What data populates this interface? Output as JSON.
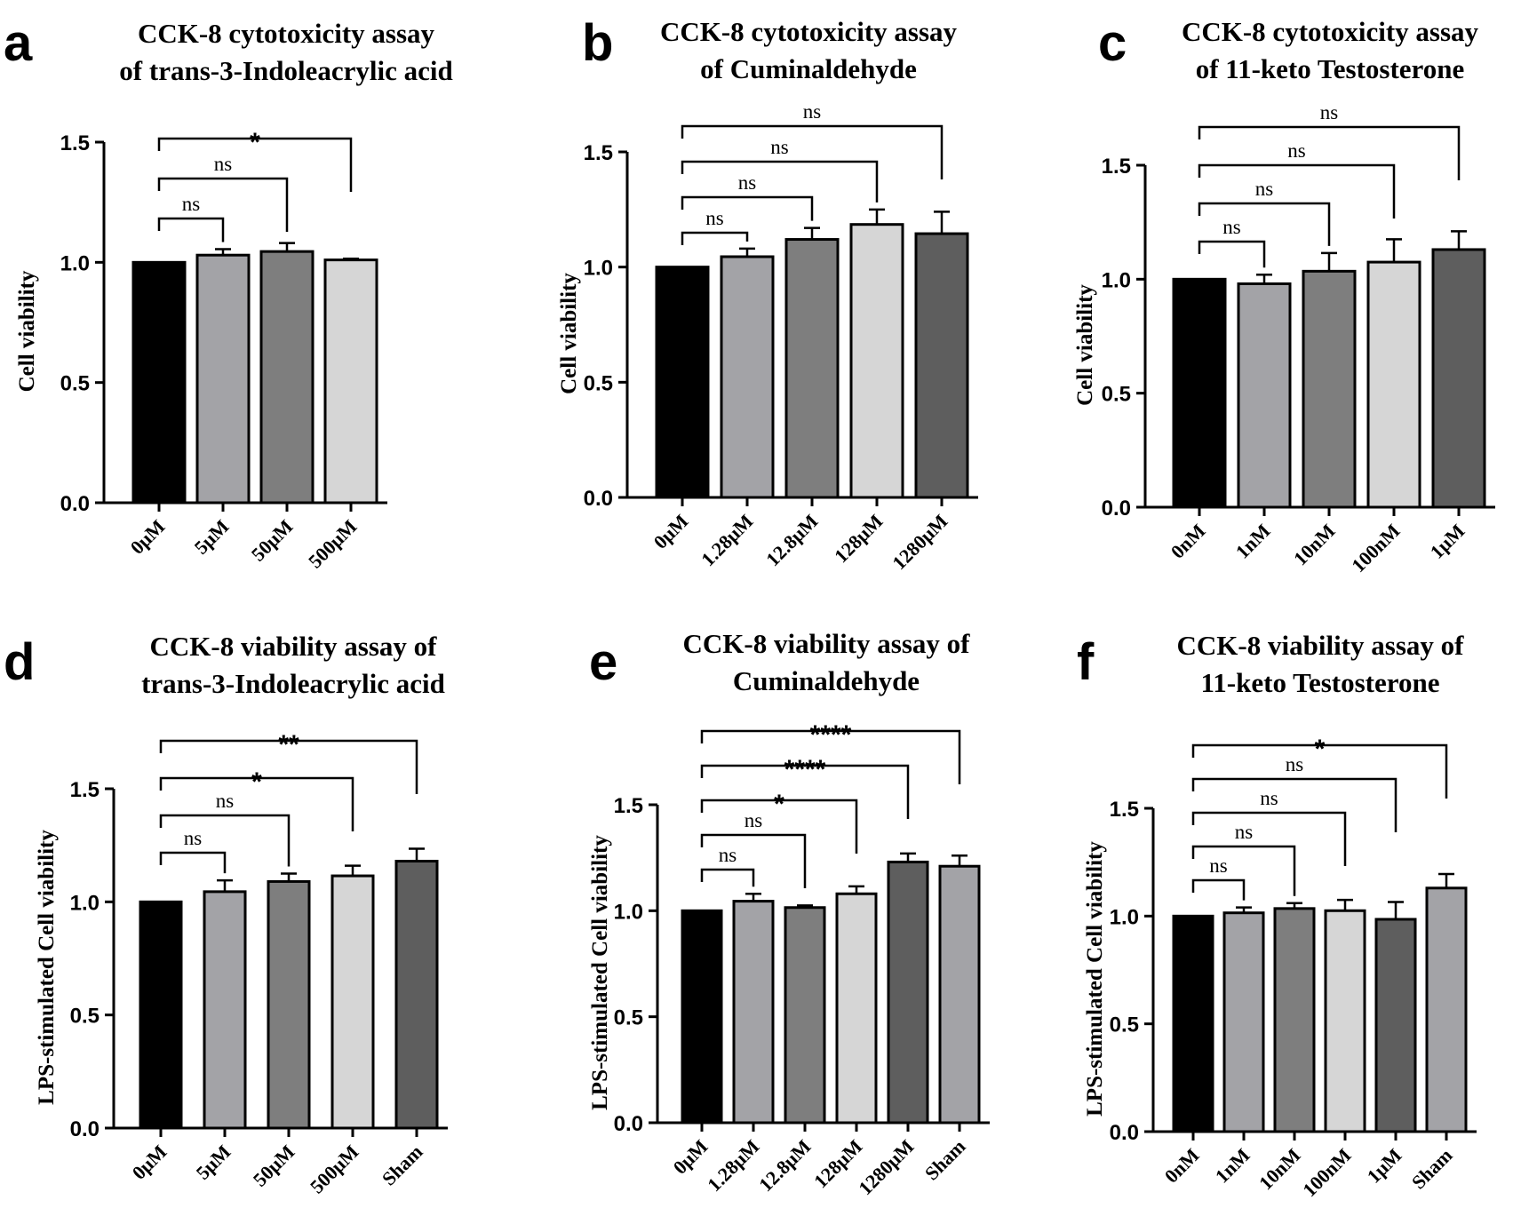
{
  "chart_data": [
    {
      "letter": "a",
      "type": "bar",
      "title": [
        "CCK-8 cytotoxicity assay",
        "of trans-3-Indoleacrylic acid"
      ],
      "ylabel": "Cell viability",
      "xlabel": "",
      "ylim": [
        0,
        1.5
      ],
      "yticks": [
        "0.0",
        "0.5",
        "1.0",
        "1.5"
      ],
      "categories": [
        "0μM",
        "5μM",
        "50μM",
        "500μM"
      ],
      "values": [
        1.0,
        1.03,
        1.045,
        1.01
      ],
      "errors": [
        0,
        0.025,
        0.035,
        0.005
      ],
      "colors": [
        "#000000",
        "#a3a3a7",
        "#7e7e7e",
        "#d6d6d6"
      ],
      "comparisons": [
        {
          "from": 0,
          "to": 1,
          "label": "ns"
        },
        {
          "from": 0,
          "to": 2,
          "label": "ns"
        },
        {
          "from": 0,
          "to": 3,
          "label": "*"
        }
      ]
    },
    {
      "letter": "b",
      "type": "bar",
      "title": [
        "CCK-8 cytotoxicity assay",
        "of Cuminaldehyde"
      ],
      "ylabel": "Cell viability",
      "xlabel": "",
      "ylim": [
        0,
        1.5
      ],
      "yticks": [
        "0.0",
        "0.5",
        "1.0",
        "1.5"
      ],
      "categories": [
        "0μM",
        "1.28μM",
        "12.8μM",
        "128μM",
        "1280μM"
      ],
      "values": [
        1.0,
        1.045,
        1.12,
        1.185,
        1.145
      ],
      "errors": [
        0,
        0.035,
        0.05,
        0.065,
        0.095
      ],
      "colors": [
        "#000000",
        "#a3a3a7",
        "#7e7e7e",
        "#d6d6d6",
        "#5e5e5e"
      ],
      "comparisons": [
        {
          "from": 0,
          "to": 1,
          "label": "ns"
        },
        {
          "from": 0,
          "to": 2,
          "label": "ns"
        },
        {
          "from": 0,
          "to": 3,
          "label": "ns"
        },
        {
          "from": 0,
          "to": 4,
          "label": "ns"
        }
      ]
    },
    {
      "letter": "c",
      "type": "bar",
      "title": [
        "CCK-8 cytotoxicity assay",
        "of 11-keto Testosterone"
      ],
      "ylabel": "Cell viability",
      "xlabel": "",
      "ylim": [
        0,
        1.5
      ],
      "yticks": [
        "0.0",
        "0.5",
        "1.0",
        "1.5"
      ],
      "categories": [
        "0nM",
        "1nM",
        "10nM",
        "100nM",
        "1μM"
      ],
      "values": [
        1.0,
        0.98,
        1.035,
        1.075,
        1.13
      ],
      "errors": [
        0,
        0.04,
        0.08,
        0.1,
        0.08
      ],
      "colors": [
        "#000000",
        "#a3a3a7",
        "#7e7e7e",
        "#d6d6d6",
        "#5e5e5e"
      ],
      "comparisons": [
        {
          "from": 0,
          "to": 1,
          "label": "ns"
        },
        {
          "from": 0,
          "to": 2,
          "label": "ns"
        },
        {
          "from": 0,
          "to": 3,
          "label": "ns"
        },
        {
          "from": 0,
          "to": 4,
          "label": "ns"
        }
      ]
    },
    {
      "letter": "d",
      "type": "bar",
      "title": [
        "CCK-8 viability assay of",
        "trans-3-Indoleacrylic acid"
      ],
      "ylabel": "LPS-stimulated Cell viability",
      "xlabel": "",
      "ylim": [
        0,
        1.5
      ],
      "yticks": [
        "0.0",
        "0.5",
        "1.0",
        "1.5"
      ],
      "categories": [
        "0μM",
        "5μM",
        "50μM",
        "500μM",
        "Sham"
      ],
      "values": [
        1.0,
        1.045,
        1.09,
        1.115,
        1.18
      ],
      "errors": [
        0,
        0.05,
        0.035,
        0.045,
        0.055
      ],
      "colors": [
        "#000000",
        "#a3a3a7",
        "#7e7e7e",
        "#d6d6d6",
        "#5e5e5e"
      ],
      "comparisons": [
        {
          "from": 0,
          "to": 1,
          "label": "ns"
        },
        {
          "from": 0,
          "to": 2,
          "label": "ns"
        },
        {
          "from": 0,
          "to": 3,
          "label": "*"
        },
        {
          "from": 0,
          "to": 4,
          "label": "**"
        }
      ]
    },
    {
      "letter": "e",
      "type": "bar",
      "title": [
        "CCK-8 viability assay of",
        "Cuminaldehyde"
      ],
      "ylabel": "LPS-stimulated Cell viability",
      "xlabel": "",
      "ylim": [
        0,
        1.5
      ],
      "yticks": [
        "0.0",
        "0.5",
        "1.0",
        "1.5"
      ],
      "categories": [
        "0μM",
        "1.28μM",
        "12.8μM",
        "128μM",
        "1280μM",
        "Sham"
      ],
      "values": [
        1.0,
        1.045,
        1.015,
        1.08,
        1.23,
        1.21
      ],
      "errors": [
        0,
        0.035,
        0.01,
        0.035,
        0.04,
        0.05
      ],
      "colors": [
        "#000000",
        "#a3a3a7",
        "#7e7e7e",
        "#d6d6d6",
        "#5e5e5e",
        "#a3a3a7"
      ],
      "comparisons": [
        {
          "from": 0,
          "to": 1,
          "label": "ns"
        },
        {
          "from": 0,
          "to": 2,
          "label": "ns"
        },
        {
          "from": 0,
          "to": 3,
          "label": "*"
        },
        {
          "from": 0,
          "to": 4,
          "label": "****"
        },
        {
          "from": 0,
          "to": 5,
          "label": "****"
        }
      ]
    },
    {
      "letter": "f",
      "type": "bar",
      "title": [
        "CCK-8 viability assay of",
        "11-keto Testosterone"
      ],
      "ylabel": "LPS-stimulated Cell viability",
      "xlabel": "",
      "ylim": [
        0,
        1.5
      ],
      "yticks": [
        "0.0",
        "0.5",
        "1.0",
        "1.5"
      ],
      "categories": [
        "0nM",
        "1nM",
        "10nM",
        "100nM",
        "1μM",
        "Sham"
      ],
      "values": [
        1.0,
        1.015,
        1.035,
        1.025,
        0.985,
        1.13
      ],
      "errors": [
        0,
        0.025,
        0.025,
        0.05,
        0.08,
        0.065
      ],
      "colors": [
        "#000000",
        "#a3a3a7",
        "#7e7e7e",
        "#d6d6d6",
        "#5e5e5e",
        "#a3a3a7"
      ],
      "comparisons": [
        {
          "from": 0,
          "to": 1,
          "label": "ns"
        },
        {
          "from": 0,
          "to": 2,
          "label": "ns"
        },
        {
          "from": 0,
          "to": 3,
          "label": "ns"
        },
        {
          "from": 0,
          "to": 4,
          "label": "ns"
        },
        {
          "from": 0,
          "to": 5,
          "label": "*"
        }
      ]
    }
  ]
}
